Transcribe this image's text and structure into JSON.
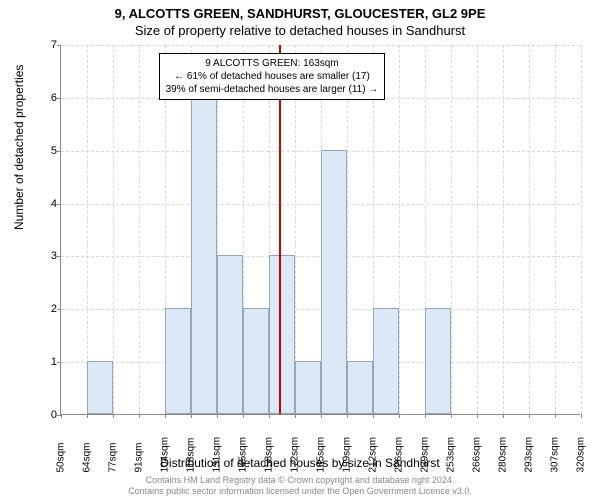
{
  "title_main": "9, ALCOTTS GREEN, SANDHURST, GLOUCESTER, GL2 9PE",
  "title_sub": "Size of property relative to detached houses in Sandhurst",
  "y_axis_label": "Number of detached properties",
  "x_axis_label": "Distribution of detached houses by size in Sandhurst",
  "chart": {
    "type": "histogram",
    "ylim": [
      0,
      7
    ],
    "ytick_step": 1,
    "background_color": "#ffffff",
    "grid_color": "#d8d8d8",
    "bar_fill": "#dbe9f6",
    "bar_border": "rgba(100,120,150,0.6)",
    "marker_color": "#cc0000",
    "x_ticks": [
      "50sqm",
      "64sqm",
      "77sqm",
      "91sqm",
      "104sqm",
      "118sqm",
      "131sqm",
      "145sqm",
      "158sqm",
      "172sqm",
      "185sqm",
      "199sqm",
      "212sqm",
      "226sqm",
      "239sqm",
      "253sqm",
      "266sqm",
      "280sqm",
      "293sqm",
      "307sqm",
      "320sqm"
    ],
    "bars": [
      {
        "i": 0,
        "h": 0
      },
      {
        "i": 1,
        "h": 1
      },
      {
        "i": 2,
        "h": 0
      },
      {
        "i": 3,
        "h": 0
      },
      {
        "i": 4,
        "h": 2
      },
      {
        "i": 5,
        "h": 6
      },
      {
        "i": 6,
        "h": 3
      },
      {
        "i": 7,
        "h": 2
      },
      {
        "i": 8,
        "h": 3
      },
      {
        "i": 9,
        "h": 1
      },
      {
        "i": 10,
        "h": 5
      },
      {
        "i": 11,
        "h": 1
      },
      {
        "i": 12,
        "h": 2
      },
      {
        "i": 13,
        "h": 0
      },
      {
        "i": 14,
        "h": 2
      },
      {
        "i": 15,
        "h": 0
      },
      {
        "i": 16,
        "h": 0
      },
      {
        "i": 17,
        "h": 0
      },
      {
        "i": 18,
        "h": 0
      },
      {
        "i": 19,
        "h": 0
      }
    ],
    "marker_bin_position": 8.37
  },
  "annotation": {
    "line1": "9 ALCOTTS GREEN: 163sqm",
    "line2": "← 61% of detached houses are smaller (17)",
    "line3": "39% of semi-detached houses are larger (11) →"
  },
  "footer_line1": "Contains HM Land Registry data © Crown copyright and database right 2024.",
  "footer_line2": "Contains public sector information licensed under the Open Government Licence v3.0."
}
